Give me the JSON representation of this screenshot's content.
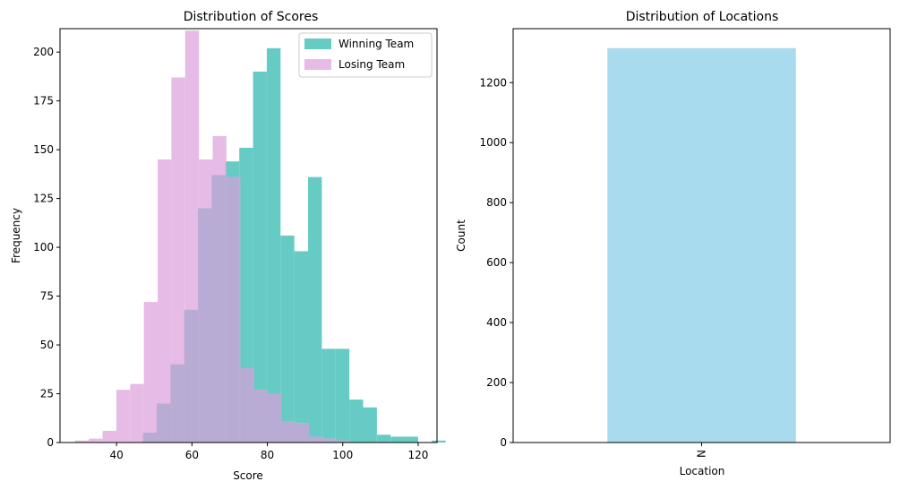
{
  "chart_data": [
    {
      "type": "histogram",
      "title": "Distribution of Scores",
      "xlabel": "Score",
      "ylabel": "Frequency",
      "xlim": [
        25,
        125
      ],
      "ylim": [
        0,
        212
      ],
      "xticks": [
        40,
        60,
        80,
        100,
        120
      ],
      "yticks": [
        0,
        25,
        50,
        75,
        100,
        125,
        150,
        175,
        200
      ],
      "legend_position": "top-right",
      "series": [
        {
          "name": "Winning Team",
          "color": "#66cbc4",
          "bin_start": 47,
          "bin_width": 3.65,
          "values": [
            5,
            20,
            40,
            68,
            120,
            137,
            144,
            151,
            190,
            202,
            106,
            98,
            136,
            48,
            48,
            22,
            18,
            4,
            3,
            3,
            0,
            1
          ]
        },
        {
          "name": "Losing Team",
          "color": "#e6bbe6",
          "bin_start": 29,
          "bin_width": 3.65,
          "values": [
            1,
            2,
            6,
            27,
            30,
            72,
            145,
            187,
            211,
            145,
            157,
            136,
            38,
            27,
            25,
            11,
            10,
            3,
            2,
            1,
            0
          ]
        }
      ],
      "overlap_color": "#b8abd4"
    },
    {
      "type": "bar",
      "title": "Distribution of Locations",
      "xlabel": "Location",
      "ylabel": "Count",
      "categories": [
        "N"
      ],
      "values": [
        1315
      ],
      "ylim": [
        0,
        1380
      ],
      "yticks": [
        0,
        200,
        400,
        600,
        800,
        1000,
        1200
      ],
      "color": "#a8dbed"
    }
  ]
}
